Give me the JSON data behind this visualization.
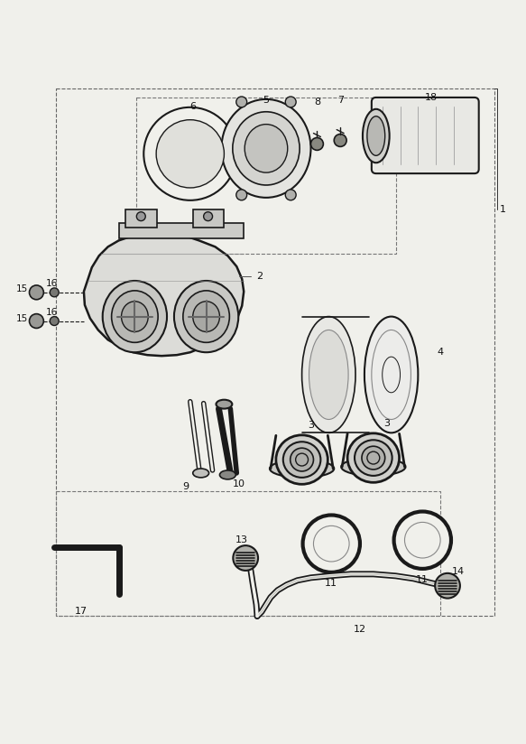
{
  "bg_color": "#f0f0eb",
  "line_color": "#1a1a1a",
  "figsize": [
    5.83,
    8.24
  ],
  "dpi": 100
}
